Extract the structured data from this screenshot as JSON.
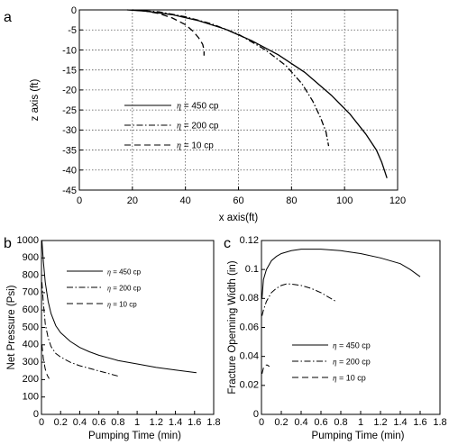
{
  "panel_labels": [
    "a",
    "b",
    "c"
  ],
  "chart_data": [
    {
      "id": "a",
      "type": "line",
      "xlabel": "x axis(ft)",
      "ylabel": "z axis (ft)",
      "xlim": [
        0,
        120
      ],
      "ylim": [
        -45,
        0
      ],
      "xticks": [
        0,
        20,
        40,
        60,
        80,
        100,
        120
      ],
      "yticks": [
        0,
        -5,
        -10,
        -15,
        -20,
        -25,
        -30,
        -35,
        -40,
        -45
      ],
      "grid": true,
      "legend_position": "center-left",
      "series": [
        {
          "name": "η = 450 cp",
          "style": "solid",
          "x": [
            18,
            25,
            35,
            45,
            55,
            65,
            75,
            85,
            95,
            102,
            108,
            112,
            114,
            115,
            116
          ],
          "y": [
            0,
            -0.3,
            -1.2,
            -2.7,
            -4.8,
            -7.7,
            -11.2,
            -15.6,
            -21.3,
            -26.0,
            -31.0,
            -35.0,
            -38.0,
            -40.0,
            -42.0
          ]
        },
        {
          "name": "η = 200 cp",
          "style": "dashdot",
          "x": [
            20,
            30,
            40,
            50,
            60,
            70,
            78,
            84,
            88,
            91,
            93,
            94
          ],
          "y": [
            0,
            -0.5,
            -1.7,
            -3.5,
            -6.1,
            -9.9,
            -14.0,
            -18.5,
            -22.8,
            -27.0,
            -30.5,
            -34.0
          ]
        },
        {
          "name": "η = 10 cp",
          "style": "dashed",
          "x": [
            20,
            25,
            30,
            35,
            40,
            43,
            45,
            46.5,
            47,
            47
          ],
          "y": [
            0,
            -0.3,
            -0.9,
            -2.0,
            -3.7,
            -5.4,
            -7.0,
            -8.6,
            -10.0,
            -11.4
          ]
        }
      ]
    },
    {
      "id": "b",
      "type": "line",
      "xlabel": "Pumping Time (min)",
      "ylabel": "Net Pressure (Psi)",
      "xlim": [
        0,
        1.8
      ],
      "ylim": [
        0,
        1000
      ],
      "xticks": [
        0,
        0.2,
        0.4,
        0.6,
        0.8,
        1,
        1.2,
        1.4,
        1.6,
        1.8
      ],
      "yticks": [
        0,
        100,
        200,
        300,
        400,
        500,
        600,
        700,
        800,
        900,
        1000
      ],
      "grid": false,
      "legend_position": "top-right",
      "series": [
        {
          "name": "η = 450 cp",
          "style": "solid",
          "x": [
            0.005,
            0.02,
            0.04,
            0.07,
            0.1,
            0.15,
            0.2,
            0.3,
            0.4,
            0.5,
            0.6,
            0.8,
            1.0,
            1.2,
            1.4,
            1.62
          ],
          "y": [
            1000,
            880,
            760,
            650,
            580,
            510,
            470,
            420,
            385,
            360,
            340,
            310,
            290,
            270,
            255,
            240
          ]
        },
        {
          "name": "η = 200 cp",
          "style": "dashdot",
          "x": [
            0.005,
            0.02,
            0.04,
            0.07,
            0.1,
            0.15,
            0.2,
            0.3,
            0.4,
            0.5,
            0.6,
            0.7,
            0.8
          ],
          "y": [
            760,
            640,
            520,
            440,
            390,
            350,
            330,
            300,
            280,
            265,
            250,
            235,
            220
          ]
        },
        {
          "name": "η = 10 cp",
          "style": "dashed",
          "x": [
            0.005,
            0.02,
            0.04,
            0.06,
            0.08
          ],
          "y": [
            400,
            320,
            260,
            225,
            205
          ]
        }
      ]
    },
    {
      "id": "c",
      "type": "line",
      "xlabel": "Pumping Time (min)",
      "ylabel": "Fracture Openning Width (in)",
      "xlim": [
        0,
        1.8
      ],
      "ylim": [
        0,
        0.12
      ],
      "xticks": [
        0,
        0.2,
        0.4,
        0.6,
        0.8,
        1,
        1.2,
        1.4,
        1.6,
        1.8
      ],
      "yticks": [
        0,
        0.02,
        0.04,
        0.06,
        0.08,
        0.1,
        0.12
      ],
      "ytick_labels": [
        "0",
        "0.02",
        "0.04",
        "0.06",
        "0.08",
        "0.1",
        "0.12"
      ],
      "grid": false,
      "legend_position": "bottom-center",
      "series": [
        {
          "name": "η = 450 cp",
          "style": "solid",
          "x": [
            0.005,
            0.02,
            0.05,
            0.1,
            0.15,
            0.2,
            0.3,
            0.4,
            0.5,
            0.6,
            0.8,
            1.0,
            1.2,
            1.4,
            1.5,
            1.6
          ],
          "y": [
            0.08,
            0.093,
            0.1,
            0.106,
            0.109,
            0.111,
            0.113,
            0.114,
            0.114,
            0.114,
            0.113,
            0.111,
            0.108,
            0.104,
            0.1,
            0.095
          ]
        },
        {
          "name": "η = 200 cp",
          "style": "dashdot",
          "x": [
            0.005,
            0.02,
            0.05,
            0.1,
            0.15,
            0.2,
            0.25,
            0.3,
            0.4,
            0.5,
            0.6,
            0.75
          ],
          "y": [
            0.068,
            0.072,
            0.078,
            0.084,
            0.087,
            0.089,
            0.09,
            0.09,
            0.089,
            0.087,
            0.084,
            0.078
          ]
        },
        {
          "name": "η = 10 cp",
          "style": "dashed",
          "x": [
            0.005,
            0.02,
            0.04,
            0.06,
            0.08
          ],
          "y": [
            0.028,
            0.032,
            0.034,
            0.034,
            0.033
          ]
        }
      ]
    }
  ]
}
